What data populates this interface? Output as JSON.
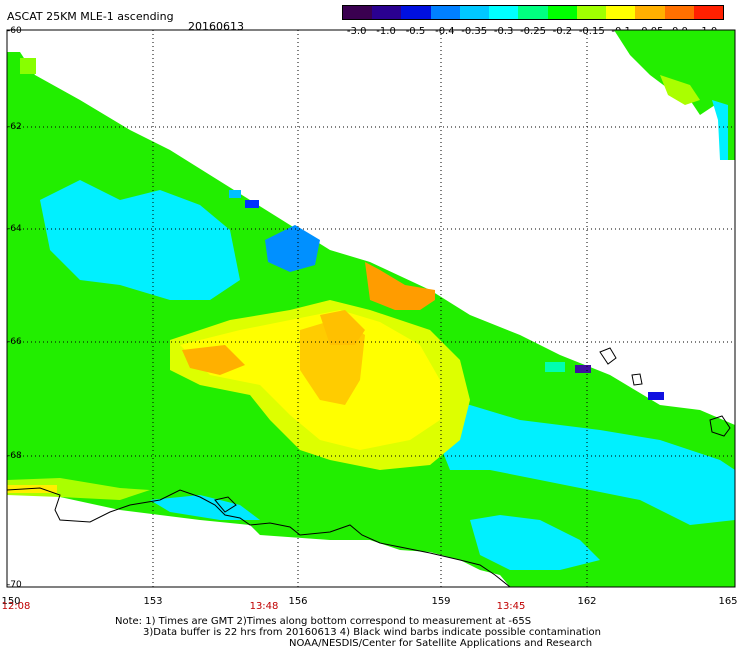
{
  "title": "ASCAT 25KM MLE-1 ascending",
  "date": "20160613",
  "colorbar": {
    "labels": [
      "-3.0",
      "-1.0",
      "-0.5",
      "-0.4",
      "-0.35",
      "-0.3",
      "-0.25",
      "-0.2",
      "-0.15",
      "-0.1",
      "-0.05",
      "0.0",
      "1.0"
    ],
    "colors": [
      "#3a0050",
      "#2a0090",
      "#0010e0",
      "#0080ff",
      "#00c8ff",
      "#00ffff",
      "#00ff80",
      "#00ff00",
      "#a0ff00",
      "#ffff00",
      "#ffb000",
      "#ff7000",
      "#ff2000"
    ]
  },
  "latitudes": [
    "-60",
    "-62",
    "-64",
    "-66",
    "-68",
    "-70"
  ],
  "longitudes": [
    "150",
    "153",
    "156",
    "159",
    "162",
    "165"
  ],
  "times": [
    "12:08",
    "13:48",
    "13:45"
  ],
  "notes": {
    "line1": "Note: 1) Times are GMT 2)Times along bottom correspond to measurement at -65S",
    "line2": "3)Data buffer is 22 hrs from 20160613 4) Black wind barbs indicate possible contamination",
    "line3": "NOAA/NESDIS/Center for Satellite Applications and Research"
  }
}
